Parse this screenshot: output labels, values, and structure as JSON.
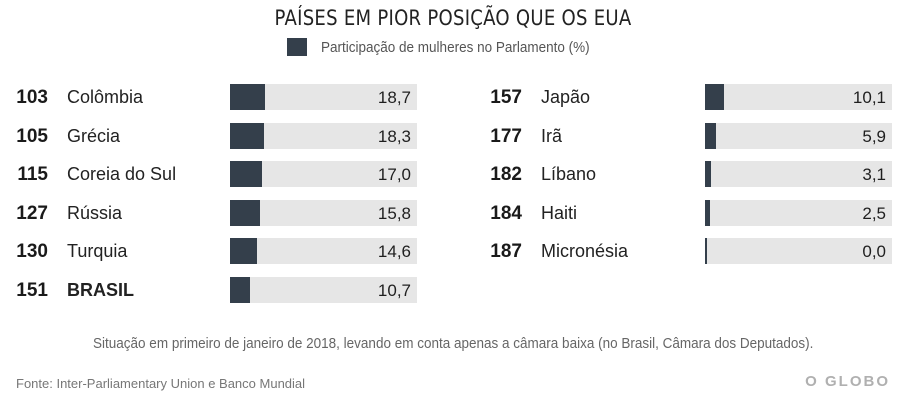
{
  "header": {
    "title": "PAÍSES EM PIOR POSIÇÃO QUE OS EUA",
    "legend_label": "Participação de mulheres no Parlamento (%)"
  },
  "colors": {
    "bar": "#343f4b",
    "track": "#e6e6e6"
  },
  "chart_data": {
    "type": "bar",
    "title": "PAÍSES EM PIOR POSIÇÃO QUE OS EUA",
    "legend": [
      "Participação de mulheres no Parlamento (%)"
    ],
    "xlim": [
      0,
      100
    ],
    "left_column": [
      {
        "rank": "103",
        "country": "Colômbia",
        "value": 18.7,
        "label": "18,7",
        "bold": false
      },
      {
        "rank": "105",
        "country": "Grécia",
        "value": 18.3,
        "label": "18,3",
        "bold": false
      },
      {
        "rank": "115",
        "country": "Coreia do Sul",
        "value": 17.0,
        "label": "17,0",
        "bold": false
      },
      {
        "rank": "127",
        "country": "Rússia",
        "value": 15.8,
        "label": "15,8",
        "bold": false
      },
      {
        "rank": "130",
        "country": "Turquia",
        "value": 14.6,
        "label": "14,6",
        "bold": false
      },
      {
        "rank": "151",
        "country": "BRASIL",
        "value": 10.7,
        "label": "10,7",
        "bold": true
      }
    ],
    "right_column": [
      {
        "rank": "157",
        "country": "Japão",
        "value": 10.1,
        "label": "10,1",
        "bold": false
      },
      {
        "rank": "177",
        "country": "Irã",
        "value": 5.9,
        "label": "5,9",
        "bold": false
      },
      {
        "rank": "182",
        "country": "Líbano",
        "value": 3.1,
        "label": "3,1",
        "bold": false
      },
      {
        "rank": "184",
        "country": "Haiti",
        "value": 2.5,
        "label": "2,5",
        "bold": false
      },
      {
        "rank": "187",
        "country": "Micronésia",
        "value": 0.0,
        "label": "0,0",
        "bold": false
      }
    ]
  },
  "footer": {
    "note": "Situação em primeiro de janeiro de 2018, levando em conta apenas a câmara baixa (no Brasil, Câmara dos Deputados).",
    "source": "Fonte: Inter-Parliamentary Union e Banco Mundial",
    "logo": "O GLOBO"
  }
}
